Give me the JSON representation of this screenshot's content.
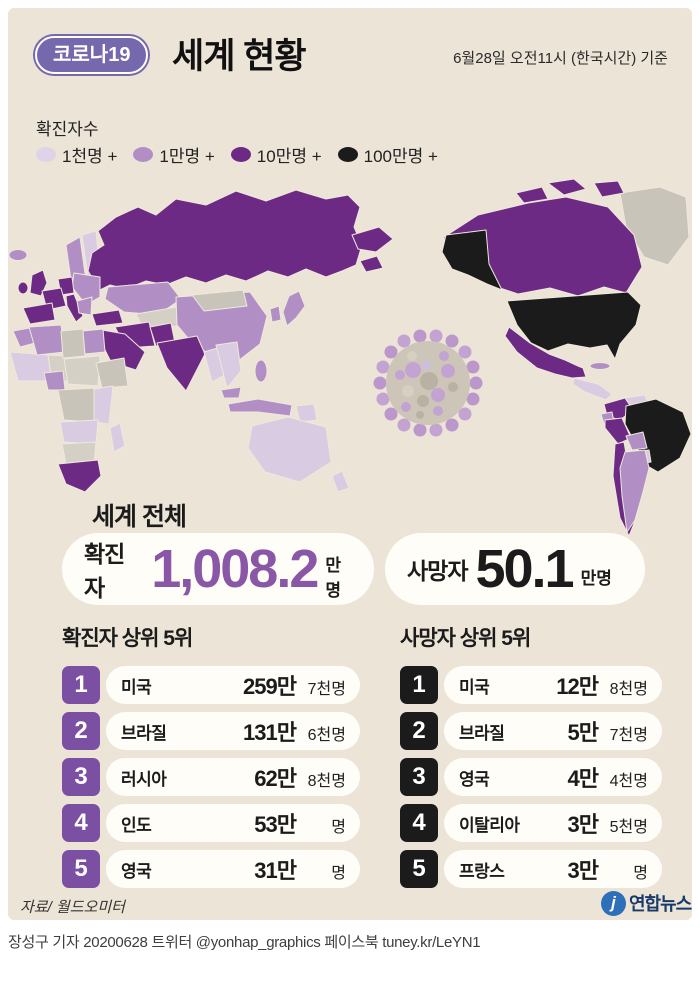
{
  "header": {
    "badge": "코로나19",
    "title": "세계 현황",
    "timestamp": "6월28일 오전11시 (한국시간) 기준"
  },
  "legend": {
    "title": "확진자수",
    "items": [
      {
        "label": "1천명 +",
        "color": "#ded3e8"
      },
      {
        "label": "1만명 +",
        "color": "#b18fc5"
      },
      {
        "label": "10만명 +",
        "color": "#6d2a84"
      },
      {
        "label": "100만명 +",
        "color": "#1b1b1b"
      }
    ]
  },
  "totals": {
    "heading": "세계 전체",
    "confirmed": {
      "label": "확진자",
      "value": "1,008.2",
      "unit": "만명",
      "value_color": "#8a57a6"
    },
    "deaths": {
      "label": "사망자",
      "value": "50.1",
      "unit": "만명",
      "value_color": "#1b1b1b"
    }
  },
  "confirmed_table": {
    "title": "확진자 상위 5위",
    "rank_color": "#7b4fa2",
    "rows": [
      {
        "rank": "1",
        "country": "미국",
        "value_bold": "259만",
        "value_rest": "7천명"
      },
      {
        "rank": "2",
        "country": "브라질",
        "value_bold": "131만",
        "value_rest": "6천명"
      },
      {
        "rank": "3",
        "country": "러시아",
        "value_bold": "62만",
        "value_rest": "8천명"
      },
      {
        "rank": "4",
        "country": "인도",
        "value_bold": "53만",
        "value_rest": "명"
      },
      {
        "rank": "5",
        "country": "영국",
        "value_bold": "31만",
        "value_rest": "명"
      }
    ]
  },
  "deaths_table": {
    "title": "사망자 상위 5위",
    "rank_color": "#1b1b1b",
    "rows": [
      {
        "rank": "1",
        "country": "미국",
        "value_bold": "12만",
        "value_rest": "8천명"
      },
      {
        "rank": "2",
        "country": "브라질",
        "value_bold": "5만",
        "value_rest": "7천명"
      },
      {
        "rank": "3",
        "country": "영국",
        "value_bold": "4만",
        "value_rest": "4천명"
      },
      {
        "rank": "4",
        "country": "이탈리아",
        "value_bold": "3만",
        "value_rest": "5천명"
      },
      {
        "rank": "5",
        "country": "프랑스",
        "value_bold": "3만",
        "value_rest": "명"
      }
    ]
  },
  "footer": {
    "source": "자료/ 월드오미터",
    "publisher_mark": "j",
    "publisher": "연합뉴스",
    "byline": "장성구 기자 20200628  트위터 @yonhap_graphics  페이스북 tuney.kr/LeYN1"
  },
  "chart_data": {
    "type": "heatmap",
    "subtype": "world-choropleth-infographic",
    "title": "코로나19 세계 현황",
    "as_of": "6월28일 오전11시 (한국시간) 기준",
    "legend_title": "확진자수",
    "legend_bins": [
      {
        "label": "1천명 +",
        "color": "#ded3e8"
      },
      {
        "label": "1만명 +",
        "color": "#b18fc5"
      },
      {
        "label": "10만명 +",
        "color": "#6d2a84"
      },
      {
        "label": "100만명 +",
        "color": "#1b1b1b"
      }
    ],
    "world_totals": {
      "confirmed_label": "확진자",
      "confirmed_만명": 1008.2,
      "deaths_label": "사망자",
      "deaths_만명": 50.1
    },
    "top5_confirmed": [
      {
        "rank": 1,
        "country": "미국",
        "value": "259만7천명"
      },
      {
        "rank": 2,
        "country": "브라질",
        "value": "131만6천명"
      },
      {
        "rank": 3,
        "country": "러시아",
        "value": "62만8천명"
      },
      {
        "rank": 4,
        "country": "인도",
        "value": "53만 명"
      },
      {
        "rank": 5,
        "country": "영국",
        "value": "31만 명"
      }
    ],
    "top5_deaths": [
      {
        "rank": 1,
        "country": "미국",
        "value": "12만8천명"
      },
      {
        "rank": 2,
        "country": "브라질",
        "value": "5만7천명"
      },
      {
        "rank": 3,
        "country": "영국",
        "value": "4만4천명"
      },
      {
        "rank": 4,
        "country": "이탈리아",
        "value": "3만5천명"
      },
      {
        "rank": 5,
        "country": "프랑스",
        "value": "3만 명"
      }
    ],
    "map_highlights": {
      "black_100만명+": [
        "미국",
        "브라질"
      ],
      "dark_10만명+": [
        "러시아",
        "인도",
        "영국",
        "프랑스",
        "스페인",
        "독일",
        "이탈리아",
        "터키",
        "이란",
        "사우디아라비아",
        "파키스탄",
        "남아프리카공화국",
        "캐나다",
        "멕시코",
        "페루",
        "칠레",
        "콜롬비아"
      ],
      "no_data_gray": [
        "그린란드",
        "몽골"
      ]
    }
  }
}
